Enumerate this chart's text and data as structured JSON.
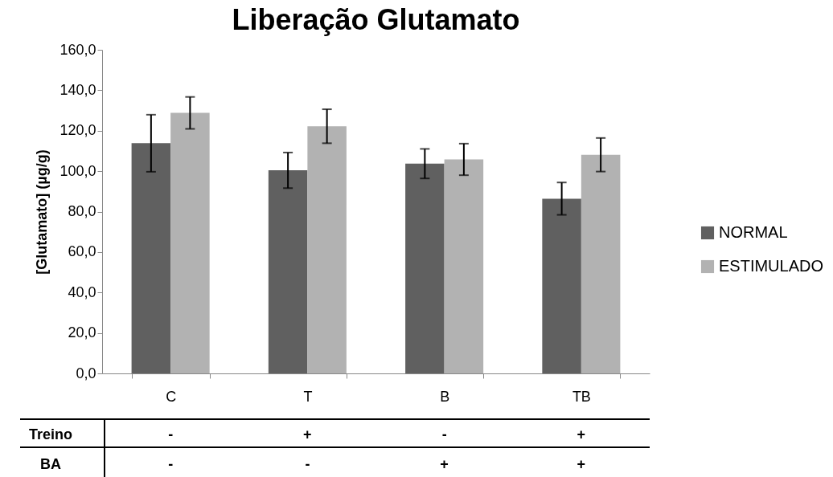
{
  "chart_data": {
    "type": "bar",
    "title": "Liberação Glutamato",
    "ylabel": "[Glutamato] (µg/g)",
    "categories": [
      "C",
      "T",
      "B",
      "TB"
    ],
    "series": [
      {
        "name": "NORMAL",
        "color": "#606060",
        "values": [
          113.8,
          100.4,
          103.7,
          86.4
        ],
        "errors": [
          14.1,
          8.8,
          7.3,
          8.0
        ]
      },
      {
        "name": "ESTIMULADO",
        "color": "#b2b2b2",
        "values": [
          128.8,
          122.2,
          105.8,
          108.1
        ],
        "errors": [
          7.9,
          8.4,
          7.8,
          8.3
        ]
      }
    ],
    "ylim": [
      0,
      160
    ],
    "yticks": [
      {
        "value": 0,
        "label": "0,0"
      },
      {
        "value": 20,
        "label": "20,0"
      },
      {
        "value": 40,
        "label": "40,0"
      },
      {
        "value": 60,
        "label": "60,0"
      },
      {
        "value": 80,
        "label": "80,0"
      },
      {
        "value": 100,
        "label": "100,0"
      },
      {
        "value": 120,
        "label": "120,0"
      },
      {
        "value": 140,
        "label": "140,0"
      },
      {
        "value": 160,
        "label": "160,0"
      }
    ],
    "grid": false,
    "legend": "right",
    "annotations": [
      "Treino",
      "-",
      "+",
      "-",
      "+",
      "BA",
      "-",
      "-",
      "+",
      "+"
    ]
  }
}
